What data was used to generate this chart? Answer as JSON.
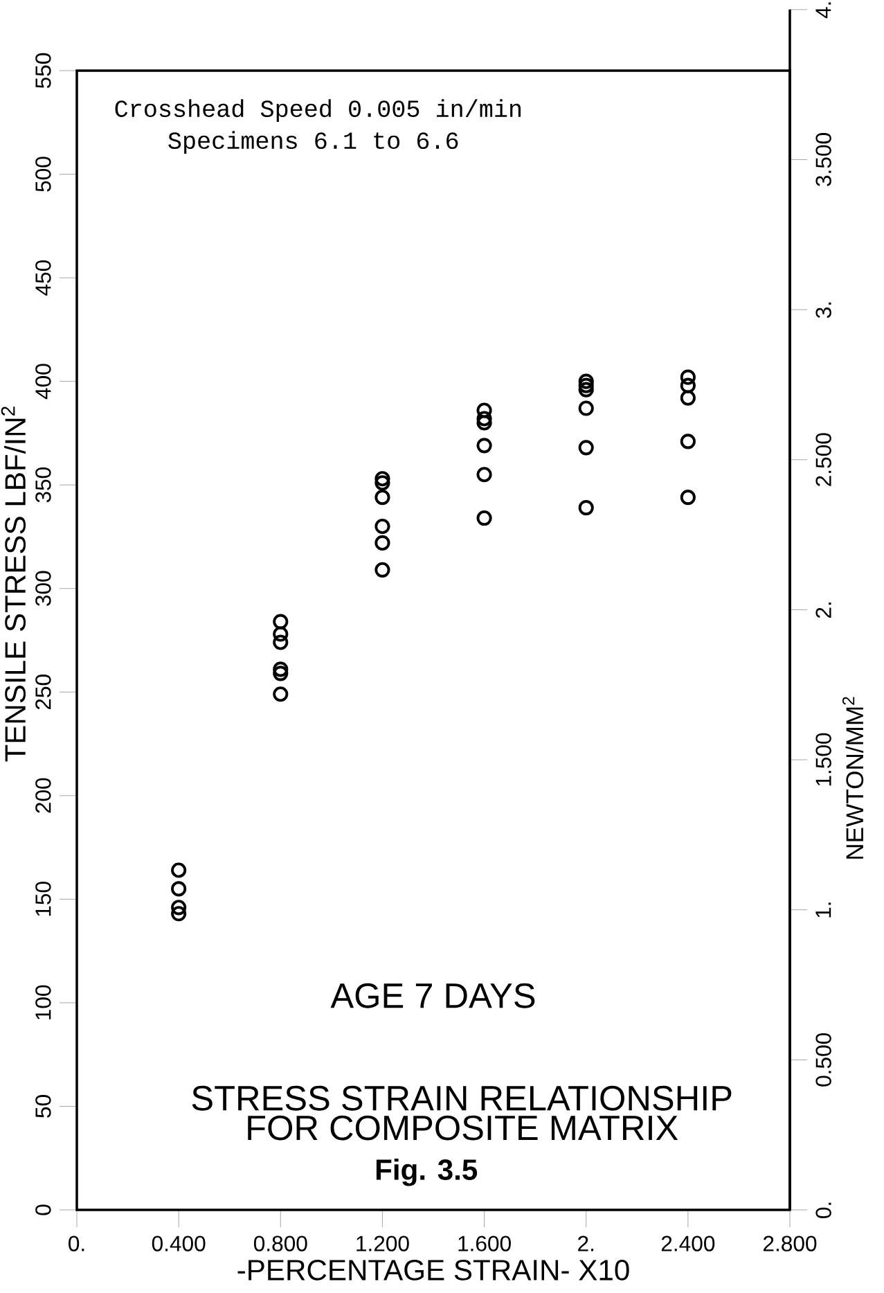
{
  "chart_data": {
    "type": "scatter",
    "xlabel": "-PERCENTAGE  STRAIN- X10",
    "ylabel": "TENSILE STRESS  LBF/IN$^{2}$",
    "y2label": "NEWTON/MM$^{2}$",
    "annotations": [
      "Crosshead Speed 0.005 in/min",
      "Specimens 6.1 to 6.6",
      "AGE     7 DAYS",
      "STRESS STRAIN RELATIONSHIP",
      "FOR COMPOSITE MATRIX",
      "Fig. 3.5"
    ],
    "series": [
      {
        "color": "#000000",
        "x": [
          0.4,
          0.4,
          0.4,
          0.4,
          0.8,
          0.8,
          0.8,
          0.8,
          0.8,
          0.8,
          1.2,
          1.2,
          1.2,
          1.2,
          1.2,
          1.2,
          1.6,
          1.6,
          1.6,
          1.6,
          1.6,
          1.6,
          2.0,
          2.0,
          2.0,
          2.0,
          2.0,
          2.0,
          2.4,
          2.4,
          2.4,
          2.4,
          2.4
        ],
        "values": [
          164,
          155,
          146,
          143,
          284,
          278,
          274,
          261,
          259,
          249,
          353,
          351,
          344,
          330,
          322,
          309,
          386,
          382,
          380,
          369,
          355,
          334,
          400,
          398,
          396,
          387,
          368,
          339,
          402,
          398,
          392,
          371,
          344
        ]
      }
    ],
    "xlim": [
      0,
      2.8
    ],
    "xticks": [
      {
        "value": 0,
        "label": "0."
      },
      {
        "value": 0.4,
        "label": "0.400"
      },
      {
        "value": 0.8,
        "label": "0.800"
      },
      {
        "value": 1.2,
        "label": "1.200"
      },
      {
        "value": 1.6,
        "label": "1.600"
      },
      {
        "value": 2.0,
        "label": "2."
      },
      {
        "value": 2.4,
        "label": "2.400"
      },
      {
        "value": 2.8,
        "label": "2.800"
      }
    ],
    "ylim": [
      0,
      550
    ],
    "yticks": [
      0,
      50,
      100,
      150,
      200,
      250,
      300,
      350,
      400,
      450,
      500,
      550
    ],
    "y2lim": [
      0,
      4
    ],
    "y2ticks": [
      {
        "value": 0,
        "label": "0."
      },
      {
        "value": 0.5,
        "label": "0.500"
      },
      {
        "value": 1,
        "label": "1."
      },
      {
        "value": 1.5,
        "label": "1.500"
      },
      {
        "value": 2,
        "label": "2."
      },
      {
        "value": 2.5,
        "label": "2.500"
      },
      {
        "value": 3,
        "label": "3."
      },
      {
        "value": 3.5,
        "label": "3.500"
      },
      {
        "value": 4,
        "label": "4."
      }
    ],
    "grid": false,
    "marker": "circle"
  }
}
